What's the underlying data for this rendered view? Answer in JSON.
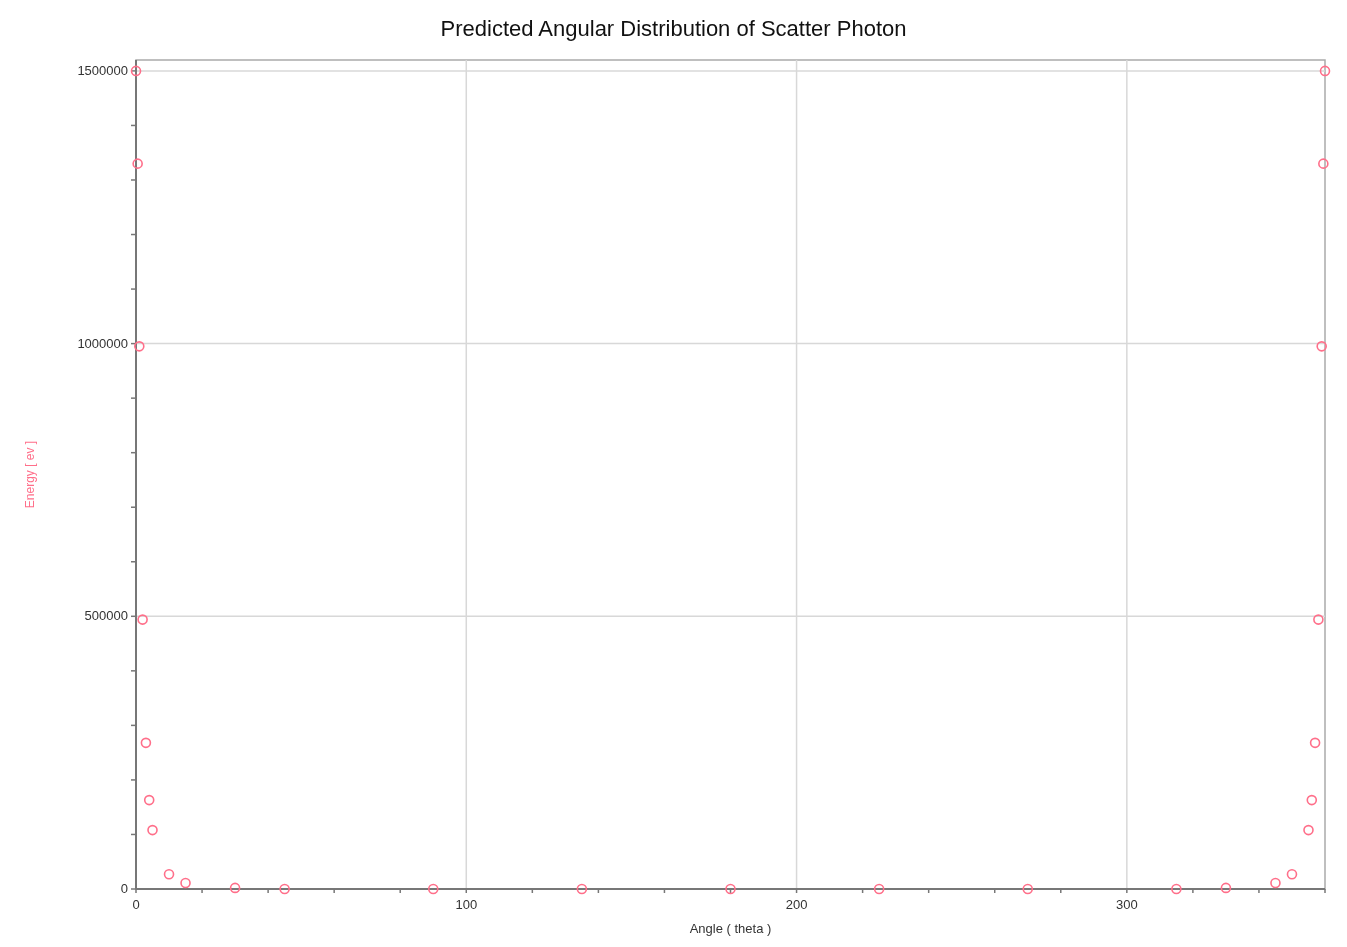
{
  "chart_data": {
    "type": "scatter",
    "title": "Predicted Angular Distribution of Scatter Photon",
    "xlabel": "Angle ( theta )",
    "ylabel": "Energy [ ev ]",
    "x": [
      0,
      0.5,
      1,
      2,
      3,
      4,
      5,
      10,
      15,
      30,
      45,
      90,
      135,
      180,
      225,
      270,
      315,
      330,
      345,
      350,
      355,
      356,
      357,
      358,
      359,
      359.5,
      360
    ],
    "series": [
      {
        "color": "#ff6f8a",
        "values": [
          1500000,
          1330000,
          995000,
          494000,
          268000,
          163000,
          108000,
          27000,
          11000,
          2000,
          0,
          0,
          0,
          0,
          0,
          0,
          0,
          2000,
          11000,
          27000,
          108000,
          163000,
          268000,
          494000,
          995000,
          1330000,
          1500000
        ]
      }
    ],
    "xlim": [
      0,
      360
    ],
    "ylim": [
      0,
      1520000
    ],
    "xticks": [
      0,
      {
        "value": 20,
        "label": null
      },
      {
        "value": 40,
        "label": null
      },
      {
        "value": 60,
        "label": null
      },
      {
        "value": 80,
        "label": null
      },
      100,
      {
        "value": 120,
        "label": null
      },
      {
        "value": 140,
        "label": null
      },
      {
        "value": 160,
        "label": null
      },
      {
        "value": 180,
        "label": null
      },
      200,
      {
        "value": 220,
        "label": null
      },
      {
        "value": 240,
        "label": null
      },
      {
        "value": 260,
        "label": null
      },
      {
        "value": 280,
        "label": null
      },
      300,
      {
        "value": 320,
        "label": null
      },
      {
        "value": 340,
        "label": null
      },
      {
        "value": 360,
        "label": null
      }
    ],
    "yticks": [
      0,
      {
        "value": 100000,
        "label": null
      },
      {
        "value": 200000,
        "label": null
      },
      {
        "value": 300000,
        "label": null
      },
      {
        "value": 400000,
        "label": null
      },
      500000,
      {
        "value": 600000,
        "label": null
      },
      {
        "value": 700000,
        "label": null
      },
      {
        "value": 800000,
        "label": null
      },
      {
        "value": 900000,
        "label": null
      },
      1000000,
      {
        "value": 1100000,
        "label": null
      },
      {
        "value": 1200000,
        "label": null
      },
      {
        "value": 1300000,
        "label": null
      },
      {
        "value": 1400000,
        "label": null
      },
      1500000
    ],
    "grid": true,
    "marker": "circle"
  }
}
